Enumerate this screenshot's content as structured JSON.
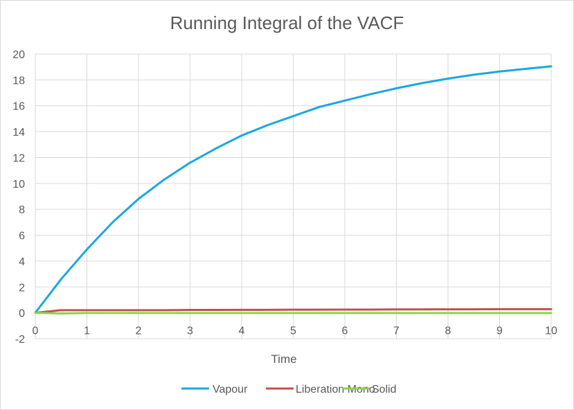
{
  "chart_data": {
    "type": "line",
    "title": "Running Integral of the VACF",
    "xlabel": "Time",
    "ylabel": "",
    "xlim": [
      0,
      10
    ],
    "ylim": [
      -2,
      20
    ],
    "x_ticks": [
      0,
      1,
      2,
      3,
      4,
      5,
      6,
      7,
      8,
      9,
      10
    ],
    "y_ticks": [
      -2,
      0,
      2,
      4,
      6,
      8,
      10,
      12,
      14,
      16,
      18,
      20
    ],
    "grid": true,
    "legend_position": "bottom",
    "x": [
      0,
      0.5,
      1,
      1.5,
      2,
      2.5,
      3,
      3.5,
      4,
      4.5,
      5,
      5.5,
      6,
      6.5,
      7,
      7.5,
      8,
      8.5,
      9,
      9.5,
      10
    ],
    "series": [
      {
        "name": "Vapour",
        "color": "#1ba7e0",
        "values": [
          0,
          2.6,
          4.9,
          7.0,
          8.8,
          10.3,
          11.6,
          12.7,
          13.7,
          14.5,
          15.2,
          15.9,
          16.4,
          16.9,
          17.35,
          17.75,
          18.1,
          18.4,
          18.65,
          18.85,
          19.05
        ]
      },
      {
        "name": "Liberation Mono",
        "color": "#c0504d",
        "values": [
          0,
          0.2,
          0.2,
          0.2,
          0.2,
          0.2,
          0.22,
          0.22,
          0.23,
          0.23,
          0.24,
          0.24,
          0.25,
          0.25,
          0.26,
          0.26,
          0.27,
          0.27,
          0.28,
          0.28,
          0.28
        ]
      },
      {
        "name": "Solid",
        "color": "#92d050",
        "values": [
          0,
          -0.05,
          -0.02,
          -0.02,
          -0.02,
          -0.02,
          -0.02,
          -0.02,
          -0.02,
          -0.02,
          -0.02,
          -0.02,
          -0.02,
          -0.02,
          -0.02,
          -0.02,
          -0.02,
          -0.02,
          -0.02,
          -0.02,
          -0.02
        ]
      }
    ]
  }
}
